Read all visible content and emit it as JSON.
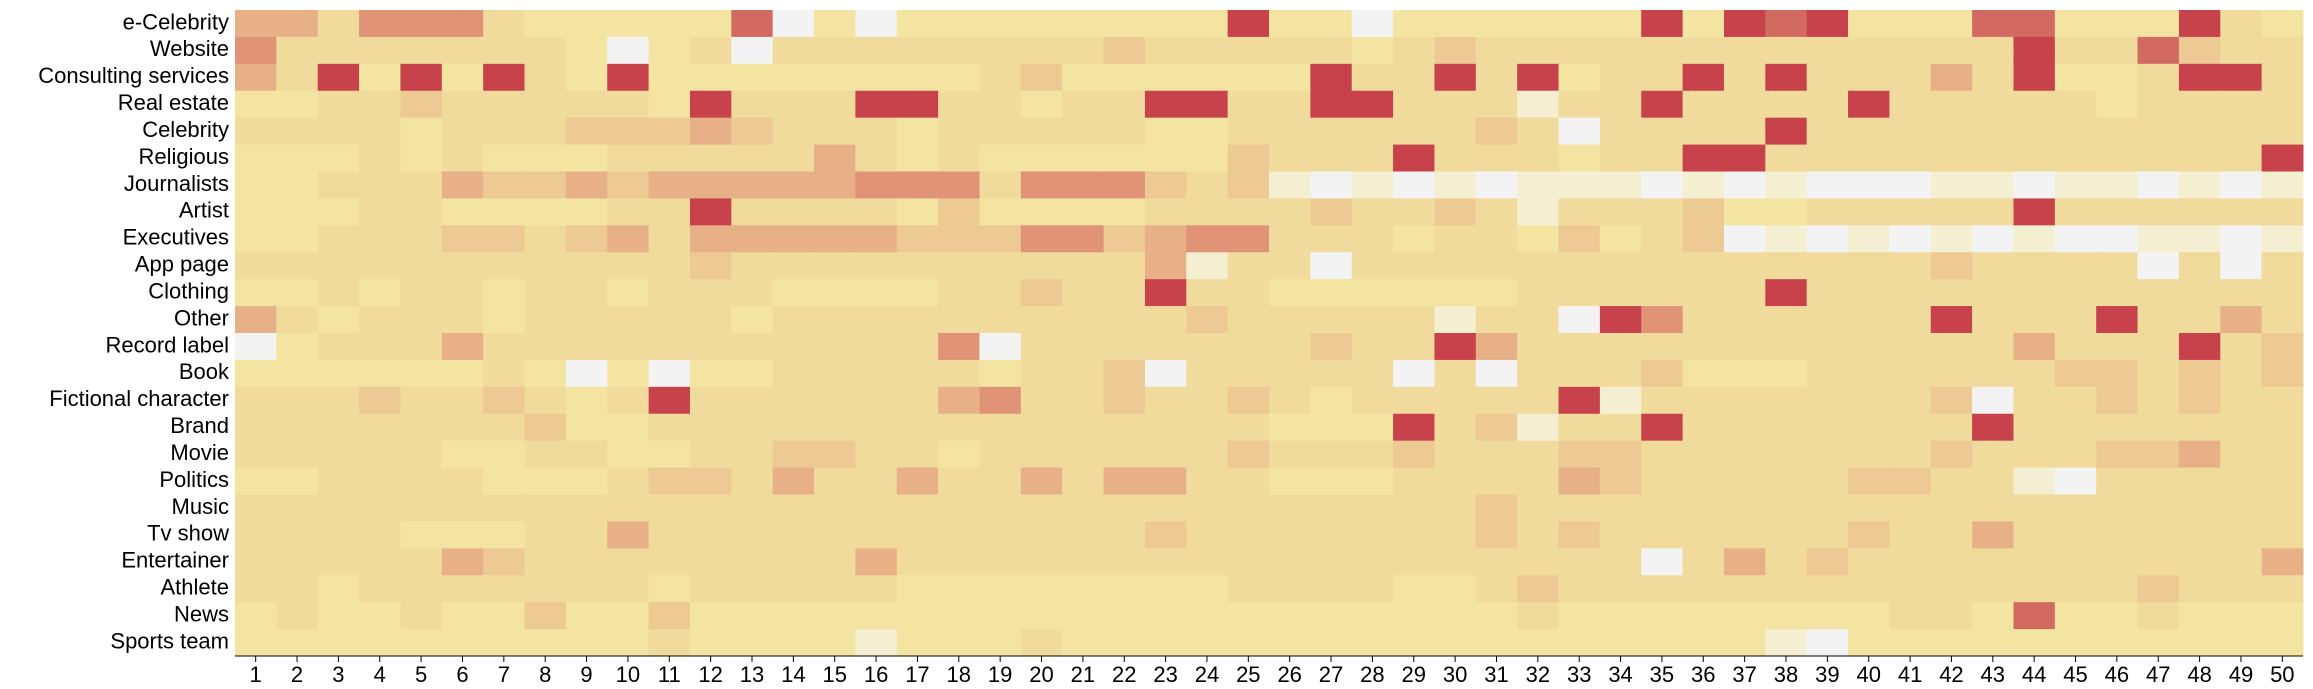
{
  "chart_data": {
    "type": "heatmap",
    "x": [
      "1",
      "2",
      "3",
      "4",
      "5",
      "6",
      "7",
      "8",
      "9",
      "10",
      "11",
      "12",
      "13",
      "14",
      "15",
      "16",
      "17",
      "18",
      "19",
      "20",
      "21",
      "22",
      "23",
      "24",
      "25",
      "26",
      "27",
      "28",
      "29",
      "30",
      "31",
      "32",
      "33",
      "34",
      "35",
      "36",
      "37",
      "38",
      "39",
      "40",
      "41",
      "42",
      "43",
      "44",
      "45",
      "46",
      "47",
      "48",
      "49",
      "50"
    ],
    "y": [
      "e-Celebrity",
      "Website",
      "Consulting services",
      "Real estate",
      "Celebrity",
      "Religious",
      "Journalists",
      "Artist",
      "Executives",
      "App page",
      "Clothing",
      "Other",
      "Record label",
      "Book",
      "Fictional character",
      "Brand",
      "Movie",
      "Politics",
      "Music",
      "Tv show",
      "Entertainer",
      "Athlete",
      "News",
      "Sports team"
    ],
    "zlim": [
      0,
      9
    ],
    "colorscale": [
      "#f3f3f3",
      "#f6eba6",
      "#f0d699",
      "#e39d7d",
      "#c7424b"
    ],
    "values": [
      [
        6,
        6,
        4,
        7,
        7,
        7,
        4,
        3,
        3,
        3,
        3,
        3,
        8,
        0,
        3,
        0,
        3,
        3,
        3,
        3,
        3,
        3,
        3,
        3,
        9,
        3,
        3,
        0,
        3,
        3,
        3,
        3,
        3,
        3,
        9,
        3,
        9,
        8,
        9,
        3,
        3,
        3,
        8,
        8,
        3,
        3,
        3,
        9,
        4,
        3
      ],
      [
        7,
        4,
        4,
        4,
        4,
        4,
        4,
        4,
        3,
        0,
        3,
        4,
        0,
        4,
        4,
        4,
        4,
        4,
        4,
        4,
        4,
        5,
        4,
        4,
        4,
        4,
        4,
        3,
        4,
        5,
        4,
        4,
        4,
        4,
        4,
        4,
        4,
        4,
        4,
        4,
        4,
        4,
        4,
        9,
        4,
        4,
        8,
        5,
        4,
        4
      ],
      [
        6,
        4,
        9,
        3,
        9,
        3,
        9,
        4,
        3,
        9,
        3,
        3,
        3,
        3,
        3,
        3,
        3,
        3,
        4,
        5,
        3,
        3,
        3,
        3,
        3,
        3,
        9,
        4,
        4,
        9,
        4,
        9,
        3,
        4,
        4,
        9,
        4,
        9,
        4,
        4,
        4,
        6,
        4,
        9,
        3,
        3,
        4,
        9,
        9,
        4
      ],
      [
        3,
        3,
        4,
        4,
        5,
        4,
        4,
        4,
        4,
        4,
        3,
        9,
        4,
        4,
        4,
        9,
        9,
        4,
        4,
        3,
        4,
        4,
        9,
        9,
        4,
        4,
        9,
        9,
        4,
        4,
        4,
        1,
        4,
        4,
        9,
        4,
        4,
        4,
        4,
        9,
        4,
        4,
        4,
        4,
        4,
        3,
        4,
        4,
        4,
        4
      ],
      [
        4,
        4,
        4,
        4,
        3,
        4,
        4,
        4,
        5,
        5,
        5,
        6,
        5,
        4,
        4,
        4,
        3,
        4,
        4,
        4,
        4,
        4,
        3,
        3,
        4,
        4,
        4,
        4,
        4,
        4,
        5,
        4,
        0,
        4,
        4,
        4,
        4,
        9,
        4,
        4,
        4,
        4,
        4,
        4,
        4,
        4,
        4,
        4,
        4,
        4
      ],
      [
        3,
        3,
        3,
        4,
        3,
        4,
        3,
        3,
        3,
        4,
        4,
        4,
        4,
        4,
        6,
        4,
        3,
        4,
        3,
        3,
        3,
        3,
        3,
        3,
        5,
        4,
        4,
        4,
        9,
        4,
        4,
        4,
        3,
        4,
        4,
        9,
        9,
        4,
        4,
        4,
        4,
        4,
        4,
        4,
        4,
        4,
        4,
        4,
        4,
        9
      ],
      [
        3,
        3,
        4,
        4,
        4,
        6,
        5,
        5,
        6,
        5,
        6,
        6,
        6,
        6,
        6,
        7,
        7,
        7,
        4,
        7,
        7,
        7,
        5,
        4,
        5,
        1,
        0,
        1,
        0,
        1,
        0,
        1,
        1,
        1,
        0,
        1,
        0,
        1,
        0,
        0,
        0,
        1,
        1,
        0,
        1,
        1,
        0,
        1,
        0,
        1
      ],
      [
        3,
        3,
        3,
        4,
        4,
        3,
        3,
        3,
        3,
        4,
        4,
        9,
        4,
        4,
        4,
        4,
        3,
        5,
        3,
        3,
        3,
        3,
        4,
        4,
        4,
        4,
        5,
        4,
        4,
        5,
        4,
        1,
        4,
        4,
        4,
        5,
        3,
        3,
        4,
        4,
        4,
        4,
        4,
        9,
        4,
        4,
        4,
        4,
        4,
        4
      ],
      [
        3,
        3,
        4,
        4,
        4,
        5,
        5,
        4,
        5,
        6,
        4,
        6,
        6,
        6,
        6,
        6,
        5,
        5,
        5,
        7,
        7,
        5,
        6,
        7,
        7,
        4,
        4,
        4,
        3,
        4,
        4,
        3,
        5,
        3,
        4,
        5,
        0,
        1,
        0,
        1,
        0,
        1,
        0,
        1,
        0,
        0,
        1,
        1,
        0,
        1
      ],
      [
        4,
        4,
        4,
        4,
        4,
        4,
        4,
        4,
        4,
        4,
        4,
        5,
        4,
        4,
        4,
        4,
        4,
        4,
        4,
        4,
        4,
        4,
        6,
        1,
        4,
        4,
        0,
        4,
        4,
        4,
        4,
        4,
        4,
        4,
        4,
        4,
        4,
        4,
        4,
        4,
        4,
        5,
        4,
        4,
        4,
        4,
        0,
        4,
        0,
        4
      ],
      [
        3,
        3,
        4,
        3,
        4,
        4,
        3,
        4,
        4,
        3,
        4,
        4,
        4,
        3,
        3,
        3,
        3,
        4,
        4,
        5,
        4,
        4,
        9,
        4,
        4,
        3,
        3,
        3,
        3,
        3,
        3,
        4,
        4,
        4,
        4,
        4,
        4,
        9,
        4,
        4,
        4,
        4,
        4,
        4,
        4,
        4,
        4,
        4,
        4,
        4
      ],
      [
        6,
        4,
        3,
        4,
        4,
        4,
        3,
        4,
        4,
        4,
        4,
        4,
        3,
        4,
        4,
        4,
        4,
        4,
        4,
        4,
        4,
        4,
        4,
        5,
        4,
        4,
        4,
        4,
        4,
        1,
        4,
        4,
        0,
        9,
        7,
        4,
        4,
        4,
        4,
        4,
        4,
        9,
        4,
        4,
        4,
        9,
        4,
        4,
        6,
        4
      ],
      [
        0,
        3,
        4,
        4,
        4,
        6,
        4,
        4,
        4,
        4,
        4,
        4,
        4,
        4,
        4,
        4,
        4,
        7,
        0,
        4,
        4,
        4,
        4,
        4,
        4,
        4,
        5,
        4,
        4,
        9,
        6,
        4,
        4,
        4,
        4,
        4,
        4,
        4,
        4,
        4,
        4,
        4,
        4,
        6,
        4,
        4,
        4,
        9,
        4,
        5
      ],
      [
        3,
        3,
        3,
        3,
        3,
        3,
        4,
        3,
        0,
        3,
        0,
        3,
        3,
        4,
        4,
        4,
        4,
        4,
        3,
        4,
        4,
        5,
        0,
        4,
        4,
        4,
        4,
        4,
        0,
        4,
        0,
        4,
        4,
        4,
        5,
        3,
        3,
        3,
        4,
        4,
        4,
        4,
        4,
        4,
        5,
        5,
        4,
        5,
        4,
        5
      ],
      [
        4,
        4,
        4,
        5,
        4,
        4,
        5,
        4,
        3,
        4,
        9,
        4,
        4,
        4,
        4,
        4,
        4,
        6,
        7,
        4,
        4,
        5,
        4,
        4,
        5,
        4,
        3,
        4,
        4,
        4,
        4,
        4,
        9,
        1,
        4,
        4,
        4,
        4,
        4,
        4,
        4,
        5,
        0,
        4,
        4,
        5,
        4,
        5,
        4,
        4
      ],
      [
        4,
        4,
        4,
        4,
        4,
        4,
        4,
        5,
        3,
        3,
        4,
        4,
        4,
        4,
        4,
        4,
        4,
        4,
        4,
        4,
        4,
        4,
        4,
        4,
        4,
        3,
        3,
        3,
        9,
        4,
        5,
        1,
        4,
        4,
        9,
        4,
        4,
        4,
        4,
        4,
        4,
        4,
        9,
        4,
        4,
        4,
        4,
        4,
        4,
        4
      ],
      [
        4,
        4,
        4,
        4,
        4,
        3,
        3,
        4,
        4,
        3,
        3,
        4,
        4,
        5,
        5,
        4,
        4,
        3,
        4,
        4,
        4,
        4,
        4,
        4,
        5,
        4,
        4,
        4,
        5,
        4,
        4,
        4,
        5,
        5,
        4,
        4,
        4,
        4,
        4,
        4,
        4,
        5,
        4,
        4,
        4,
        5,
        5,
        6,
        4,
        4
      ],
      [
        3,
        3,
        4,
        4,
        4,
        4,
        3,
        3,
        3,
        4,
        5,
        5,
        4,
        6,
        4,
        4,
        6,
        4,
        4,
        6,
        4,
        6,
        6,
        4,
        4,
        3,
        3,
        3,
        4,
        4,
        4,
        4,
        6,
        5,
        4,
        4,
        4,
        4,
        4,
        5,
        5,
        4,
        4,
        1,
        0,
        4,
        4,
        4,
        4,
        4
      ],
      [
        4,
        4,
        4,
        4,
        4,
        4,
        4,
        4,
        4,
        4,
        4,
        4,
        4,
        4,
        4,
        4,
        4,
        4,
        4,
        4,
        4,
        4,
        4,
        4,
        4,
        4,
        4,
        4,
        4,
        4,
        5,
        4,
        4,
        4,
        4,
        4,
        4,
        4,
        4,
        4,
        4,
        4,
        4,
        4,
        4,
        4,
        4,
        4,
        4,
        4
      ],
      [
        4,
        4,
        4,
        4,
        3,
        3,
        3,
        4,
        4,
        6,
        4,
        4,
        4,
        4,
        4,
        4,
        4,
        4,
        4,
        4,
        4,
        4,
        5,
        4,
        4,
        4,
        4,
        4,
        4,
        4,
        5,
        4,
        5,
        4,
        4,
        4,
        4,
        4,
        4,
        5,
        4,
        4,
        6,
        4,
        4,
        4,
        4,
        4,
        4,
        4
      ],
      [
        4,
        4,
        4,
        4,
        4,
        6,
        5,
        4,
        4,
        4,
        4,
        4,
        4,
        4,
        4,
        6,
        4,
        4,
        4,
        4,
        4,
        4,
        4,
        4,
        4,
        4,
        4,
        4,
        4,
        4,
        4,
        4,
        4,
        4,
        0,
        4,
        6,
        4,
        5,
        4,
        4,
        4,
        4,
        4,
        4,
        4,
        4,
        4,
        4,
        6
      ],
      [
        4,
        4,
        3,
        4,
        4,
        4,
        4,
        4,
        4,
        4,
        3,
        4,
        4,
        4,
        4,
        4,
        3,
        3,
        3,
        3,
        3,
        3,
        3,
        3,
        4,
        4,
        4,
        4,
        3,
        3,
        4,
        5,
        4,
        4,
        4,
        4,
        4,
        4,
        4,
        4,
        4,
        4,
        4,
        4,
        4,
        4,
        5,
        4,
        4,
        4
      ],
      [
        3,
        4,
        3,
        3,
        4,
        3,
        3,
        5,
        3,
        3,
        5,
        3,
        3,
        3,
        3,
        3,
        3,
        3,
        3,
        3,
        3,
        3,
        3,
        3,
        3,
        3,
        3,
        3,
        3,
        3,
        3,
        4,
        3,
        3,
        3,
        3,
        3,
        3,
        3,
        3,
        4,
        4,
        3,
        8,
        3,
        3,
        4,
        3,
        3,
        3
      ],
      [
        3,
        3,
        3,
        3,
        3,
        3,
        3,
        3,
        3,
        3,
        4,
        3,
        3,
        3,
        3,
        1,
        3,
        3,
        3,
        4,
        3,
        3,
        3,
        3,
        3,
        3,
        3,
        3,
        3,
        3,
        3,
        3,
        3,
        3,
        3,
        3,
        3,
        1,
        0,
        3,
        3,
        3,
        3,
        3,
        3,
        3,
        3,
        3,
        3,
        3
      ]
    ]
  }
}
